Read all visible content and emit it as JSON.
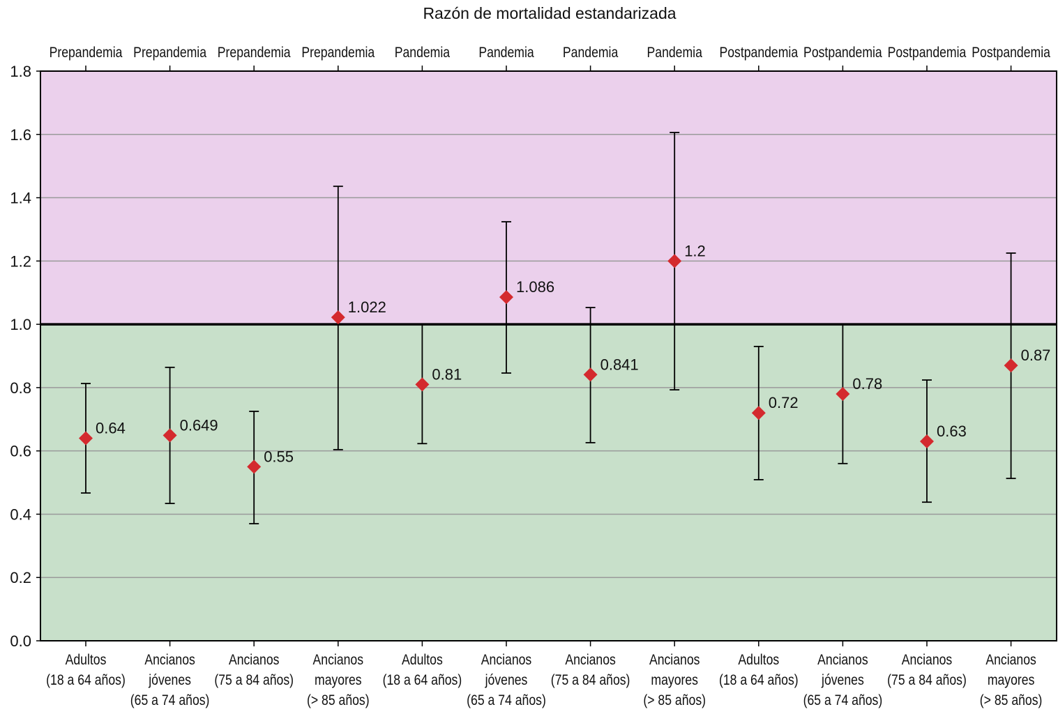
{
  "chart_data": {
    "type": "scatter",
    "title": "Razón de mortalidad estandarizada",
    "xlabel": "",
    "ylabel": "",
    "ylim": [
      0,
      1.8
    ],
    "yticks": [
      "0.0",
      "0.2",
      "0.4",
      "0.6",
      "0.8",
      "1.0",
      "1.2",
      "1.4",
      "1.6",
      "1.8"
    ],
    "reference_line": 1.0,
    "grid": true,
    "colors": {
      "above": "#ebd0ec",
      "below": "#c8e0ca",
      "marker": "#d42a2e",
      "grid": "#9a9a9a"
    },
    "points": [
      {
        "period": "Prepandemia",
        "group": [
          "Adultos",
          "(18 a 64 años)"
        ],
        "value": 0.64,
        "label": "0.64",
        "lower": 0.467,
        "upper": 0.813
      },
      {
        "period": "Prepandemia",
        "group": [
          "Ancianos",
          "jóvenes",
          "(65 a 74 años)"
        ],
        "value": 0.649,
        "label": "0.649",
        "lower": 0.434,
        "upper": 0.864
      },
      {
        "period": "Prepandemia",
        "group": [
          "Ancianos",
          "(75 a 84 años)"
        ],
        "value": 0.55,
        "label": "0.55",
        "lower": 0.37,
        "upper": 0.725
      },
      {
        "period": "Prepandemia",
        "group": [
          "Ancianos",
          "mayores",
          "(> 85 años)"
        ],
        "value": 1.022,
        "label": "1.022",
        "lower": 0.604,
        "upper": 1.436
      },
      {
        "period": "Pandemia",
        "group": [
          "Adultos",
          "(18 a 64 años)"
        ],
        "value": 0.81,
        "label": "0.81",
        "lower": 0.623,
        "upper": 1.0
      },
      {
        "period": "Pandemia",
        "group": [
          "Ancianos",
          "jóvenes",
          "(65 a 74 años)"
        ],
        "value": 1.086,
        "label": "1.086",
        "lower": 0.846,
        "upper": 1.324
      },
      {
        "period": "Pandemia",
        "group": [
          "Ancianos",
          "(75 a 84 años)"
        ],
        "value": 0.841,
        "label": "0.841",
        "lower": 0.626,
        "upper": 1.053
      },
      {
        "period": "Pandemia",
        "group": [
          "Ancianos",
          "mayores",
          "(> 85 años)"
        ],
        "value": 1.2,
        "label": "1.2",
        "lower": 0.793,
        "upper": 1.606
      },
      {
        "period": "Postpandemia",
        "group": [
          "Adultos",
          "(18 a 64 años)"
        ],
        "value": 0.72,
        "label": "0.72",
        "lower": 0.509,
        "upper": 0.93
      },
      {
        "period": "Postpandemia",
        "group": [
          "Ancianos",
          "jóvenes",
          "(65 a 74 años)"
        ],
        "value": 0.78,
        "label": "0.78",
        "lower": 0.56,
        "upper": 1.0
      },
      {
        "period": "Postpandemia",
        "group": [
          "Ancianos",
          "(75 a 84 años)"
        ],
        "value": 0.63,
        "label": "0.63",
        "lower": 0.438,
        "upper": 0.824
      },
      {
        "period": "Postpandemia",
        "group": [
          "Ancianos",
          "mayores",
          "(> 85 años)"
        ],
        "value": 0.87,
        "label": "0.87",
        "lower": 0.513,
        "upper": 1.225
      }
    ]
  }
}
